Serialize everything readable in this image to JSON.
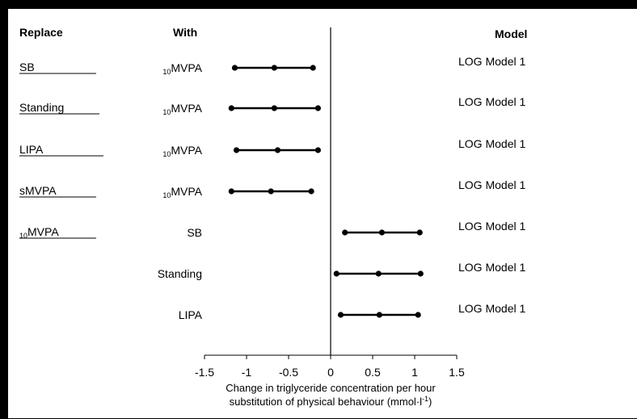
{
  "chart_data": {
    "type": "forest",
    "headers": {
      "replace": "Replace",
      "with": "With",
      "model": "Model"
    },
    "rows": [
      {
        "replace": "SB",
        "replace_prefix": "",
        "with": "MVPA",
        "with_prefix": "10",
        "model": "LOG Model 1",
        "lower": -1.14,
        "estimate": -0.67,
        "upper": -0.21
      },
      {
        "replace": "Standing",
        "replace_prefix": "",
        "with": "MVPA",
        "with_prefix": "10",
        "model": "LOG Model 1",
        "lower": -1.18,
        "estimate": -0.67,
        "upper": -0.15
      },
      {
        "replace": "LIPA",
        "replace_prefix": "",
        "with": "MVPA",
        "with_prefix": "10",
        "model": "LOG Model 1",
        "lower": -1.12,
        "estimate": -0.63,
        "upper": -0.15
      },
      {
        "replace": "sMVPA",
        "replace_prefix": "",
        "with": "MVPA",
        "with_prefix": "10",
        "model": "LOG Model 1",
        "lower": -1.18,
        "estimate": -0.71,
        "upper": -0.23
      },
      {
        "replace": "MVPA",
        "replace_prefix": "10",
        "with": "SB",
        "with_prefix": "",
        "model": "LOG Model 1",
        "lower": 0.17,
        "estimate": 0.61,
        "upper": 1.06
      },
      {
        "replace": "",
        "replace_prefix": "",
        "with": "Standing",
        "with_prefix": "",
        "model": "LOG Model 1",
        "lower": 0.07,
        "estimate": 0.57,
        "upper": 1.07
      },
      {
        "replace": "",
        "replace_prefix": "",
        "with": "LIPA",
        "with_prefix": "",
        "model": "LOG Model 1",
        "lower": 0.12,
        "estimate": 0.58,
        "upper": 1.04
      }
    ],
    "x_ticks": [
      -1.5,
      -1,
      -0.5,
      0,
      0.5,
      1,
      1.5
    ],
    "x_tick_labels": [
      "-1.5",
      "-1",
      "-0.5",
      "0",
      "0.5",
      "1",
      "1.5"
    ],
    "xlim": [
      -1.5,
      1.5
    ],
    "xlabel_line1": "Change in triglyceride concentration per hour",
    "xlabel_line2": "substitution of physical behaviour (mmol·l",
    "xlabel_unit_sup": "-1",
    "xlabel_close": ")",
    "grid": false,
    "reference_line": 0
  }
}
